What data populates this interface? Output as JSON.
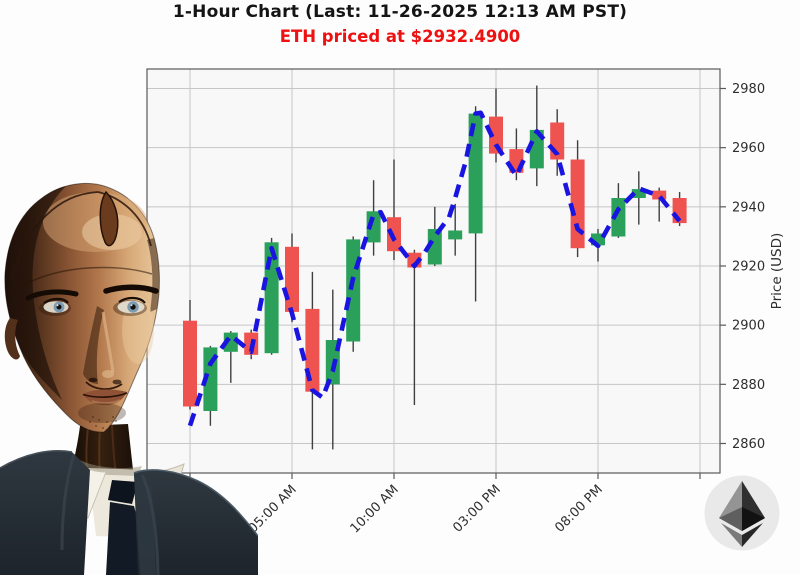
{
  "header": {
    "title": "1-Hour Chart (Last: 11-26-2025 12:13 AM PST)",
    "subtitle": "ETH priced at $2932.4900",
    "asset": "ETH",
    "last_price": 2932.49,
    "last_time": "11-26-2025 12:13 AM PST"
  },
  "chart_data": {
    "type": "candlestick",
    "title": "1-Hour Chart (Last: 11-26-2025 12:13 AM PST)",
    "xlabel": "",
    "ylabel": "Price (USD)",
    "ylim": [
      2850,
      2987
    ],
    "y_ticks": [
      2860,
      2880,
      2900,
      2920,
      2940,
      2960,
      2980
    ],
    "x_tick_labels": [
      "12:00 AM",
      "05:00 AM",
      "10:00 AM",
      "03:00 PM",
      "08:00 PM",
      ""
    ],
    "x_tick_indices": [
      0,
      5,
      10,
      15,
      20,
      25
    ],
    "grid": true,
    "legend_position": "none",
    "series": [
      {
        "name": "ETH 1-hour OHLC",
        "type": "candles",
        "points": [
          {
            "t": "12 AM",
            "o": 2901.5,
            "h": 2908.5,
            "l": 2871.5,
            "c": 2872.5
          },
          {
            "t": "01 AM",
            "o": 2871.0,
            "h": 2893.0,
            "l": 2866.0,
            "c": 2892.5
          },
          {
            "t": "02 AM",
            "o": 2891.0,
            "h": 2898.0,
            "l": 2880.5,
            "c": 2897.5
          },
          {
            "t": "03 AM",
            "o": 2897.5,
            "h": 2898.5,
            "l": 2888.5,
            "c": 2890.0
          },
          {
            "t": "04 AM",
            "o": 2890.5,
            "h": 2929.5,
            "l": 2890.0,
            "c": 2928.0
          },
          {
            "t": "05 AM",
            "o": 2926.5,
            "h": 2931.0,
            "l": 2901.0,
            "c": 2904.5
          },
          {
            "t": "06 AM",
            "o": 2905.5,
            "h": 2918.0,
            "l": 2858.0,
            "c": 2877.5
          },
          {
            "t": "07 AM",
            "o": 2880.0,
            "h": 2912.0,
            "l": 2858.0,
            "c": 2895.0
          },
          {
            "t": "08 AM",
            "o": 2894.5,
            "h": 2930.0,
            "l": 2891.0,
            "c": 2929.0
          },
          {
            "t": "09 AM",
            "o": 2928.0,
            "h": 2949.0,
            "l": 2923.5,
            "c": 2938.5
          },
          {
            "t": "10 AM",
            "o": 2936.5,
            "h": 2956.0,
            "l": 2922.0,
            "c": 2925.0
          },
          {
            "t": "11 AM",
            "o": 2924.5,
            "h": 2925.5,
            "l": 2873.0,
            "c": 2919.5
          },
          {
            "t": "12 PM",
            "o": 2920.5,
            "h": 2940.0,
            "l": 2920.0,
            "c": 2932.5
          },
          {
            "t": "01 PM",
            "o": 2929.0,
            "h": 2941.0,
            "l": 2923.5,
            "c": 2932.0
          },
          {
            "t": "02 PM",
            "o": 2931.0,
            "h": 2974.0,
            "l": 2908.0,
            "c": 2971.5
          },
          {
            "t": "03 PM",
            "o": 2970.5,
            "h": 2980.0,
            "l": 2955.0,
            "c": 2958.0
          },
          {
            "t": "04 PM",
            "o": 2959.5,
            "h": 2966.5,
            "l": 2949.0,
            "c": 2951.5
          },
          {
            "t": "05 PM",
            "o": 2953.0,
            "h": 2981.0,
            "l": 2947.0,
            "c": 2966.0
          },
          {
            "t": "06 PM",
            "o": 2968.5,
            "h": 2973.0,
            "l": 2950.5,
            "c": 2956.0
          },
          {
            "t": "07 PM",
            "o": 2956.0,
            "h": 2962.5,
            "l": 2923.0,
            "c": 2926.0
          },
          {
            "t": "08 PM",
            "o": 2927.0,
            "h": 2932.5,
            "l": 2921.5,
            "c": 2931.0
          },
          {
            "t": "09 PM",
            "o": 2930.0,
            "h": 2948.0,
            "l": 2929.5,
            "c": 2943.0
          },
          {
            "t": "10 PM",
            "o": 2943.0,
            "h": 2952.0,
            "l": 2934.0,
            "c": 2946.0
          },
          {
            "t": "11 PM",
            "o": 2945.5,
            "h": 2946.5,
            "l": 2935.0,
            "c": 2942.5
          },
          {
            "t": "12 AM",
            "o": 2943.0,
            "h": 2945.0,
            "l": 2933.5,
            "c": 2934.5
          }
        ]
      },
      {
        "name": "moving average (blue dashed)",
        "type": "dashed-line",
        "points": [
          [
            0,
            2866
          ],
          [
            1,
            2887
          ],
          [
            2,
            2896.5
          ],
          [
            3,
            2891
          ],
          [
            4,
            2926
          ],
          [
            5,
            2904
          ],
          [
            6,
            2878
          ],
          [
            6.5,
            2875.5
          ],
          [
            7,
            2884.5
          ],
          [
            8,
            2916
          ],
          [
            9,
            2937.5
          ],
          [
            9.35,
            2938.2
          ],
          [
            10,
            2929
          ],
          [
            11,
            2920
          ],
          [
            11.5,
            2924.5
          ],
          [
            12,
            2930
          ],
          [
            12.7,
            2936.5
          ],
          [
            13,
            2943
          ],
          [
            13.5,
            2955
          ],
          [
            14,
            2971.5
          ],
          [
            14.25,
            2971.8
          ],
          [
            15,
            2961
          ],
          [
            16,
            2950.5
          ],
          [
            17,
            2965.5
          ],
          [
            18,
            2957.8
          ],
          [
            19,
            2932.5
          ],
          [
            20,
            2926.8
          ],
          [
            21,
            2939.2
          ],
          [
            22,
            2946.2
          ],
          [
            23,
            2943.7
          ],
          [
            24,
            2935.2
          ]
        ]
      }
    ],
    "colors": {
      "up": "#2aa05a",
      "down": "#ef5350",
      "ma": "#1a14e0",
      "wick": "#3f3f3f",
      "grid": "#c6c6c6",
      "spine": "#5a5a5a",
      "plot_bg": "#f8f8f8",
      "page_bg": "#fdfdfd",
      "title": "#141414",
      "subtitle": "#ee1111",
      "tick_text": "#2e2e2e"
    }
  },
  "decorations": {
    "robot_avatar": "android-robot-portrait",
    "eth_logo": "ethereum-logo"
  }
}
